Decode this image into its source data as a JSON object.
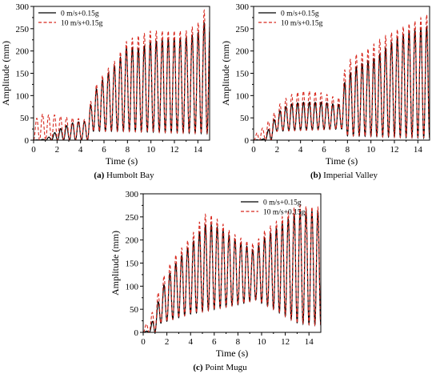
{
  "chart_data": [
    {
      "id": "a",
      "type": "line",
      "caption_letter": "(a)",
      "caption_text": "Humbolt Bay",
      "xlabel": "Time (s)",
      "ylabel": "Amplitude (mm)",
      "xlim": [
        0,
        15
      ],
      "ylim": [
        0,
        300
      ],
      "xticks": [
        0,
        2,
        4,
        6,
        8,
        10,
        12,
        14
      ],
      "yticks": [
        0,
        50,
        100,
        150,
        200,
        250,
        300
      ],
      "legend_position": "top-left",
      "period_s": 0.51,
      "series": [
        {
          "name": "0 m/s+0.15g",
          "color": "#000000",
          "dash": "solid",
          "envelope": [
            [
              0,
              0
            ],
            [
              1,
              2
            ],
            [
              1.6,
              12
            ],
            [
              2,
              22
            ],
            [
              2.6,
              30
            ],
            [
              3.2,
              38
            ],
            [
              4,
              42
            ],
            [
              4.6,
              42
            ],
            [
              5,
              100
            ],
            [
              5.6,
              125
            ],
            [
              6,
              140
            ],
            [
              7,
              170
            ],
            [
              8,
              210
            ],
            [
              9,
              205
            ],
            [
              10,
              220
            ],
            [
              11,
              225
            ],
            [
              12,
              228
            ],
            [
              13,
              230
            ],
            [
              14,
              240
            ],
            [
              14.7,
              270
            ],
            [
              15,
              265
            ]
          ],
          "troughs": [
            [
              0,
              0
            ],
            [
              4.8,
              0
            ],
            [
              5,
              20
            ],
            [
              8,
              20
            ],
            [
              15,
              15
            ]
          ]
        },
        {
          "name": "10 m/s+0.15g",
          "color": "#d8281e",
          "dash": "dashed",
          "envelope": [
            [
              0,
              35
            ],
            [
              0.5,
              62
            ],
            [
              1,
              55
            ],
            [
              1.6,
              58
            ],
            [
              2,
              55
            ],
            [
              2.6,
              52
            ],
            [
              3.2,
              50
            ],
            [
              4,
              48
            ],
            [
              4.6,
              45
            ],
            [
              5,
              110
            ],
            [
              5.6,
              135
            ],
            [
              6,
              150
            ],
            [
              7,
              180
            ],
            [
              8,
              225
            ],
            [
              9,
              235
            ],
            [
              10,
              245
            ],
            [
              11,
              245
            ],
            [
              12,
              245
            ],
            [
              13,
              245
            ],
            [
              14,
              262
            ],
            [
              14.7,
              300
            ],
            [
              15,
              280
            ]
          ],
          "troughs": [
            [
              0,
              0
            ],
            [
              1.5,
              0
            ],
            [
              4.8,
              0
            ],
            [
              5,
              20
            ],
            [
              8,
              20
            ],
            [
              15,
              15
            ]
          ]
        }
      ]
    },
    {
      "id": "b",
      "type": "line",
      "caption_letter": "(b)",
      "caption_text": "Imperial Valley",
      "xlabel": "Time (s)",
      "ylabel": "Amplitude (mm)",
      "xlim": [
        0,
        15
      ],
      "ylim": [
        0,
        300
      ],
      "xticks": [
        0,
        2,
        4,
        6,
        8,
        10,
        12,
        14
      ],
      "yticks": [
        0,
        50,
        100,
        150,
        200,
        250,
        300
      ],
      "legend_position": "top-left",
      "period_s": 0.5,
      "series": [
        {
          "name": "0 m/s+0.15g",
          "color": "#000000",
          "dash": "solid",
          "envelope": [
            [
              0,
              0
            ],
            [
              0.8,
              2
            ],
            [
              1.5,
              35
            ],
            [
              2.2,
              65
            ],
            [
              3,
              80
            ],
            [
              4,
              85
            ],
            [
              5,
              85
            ],
            [
              6,
              85
            ],
            [
              7,
              80
            ],
            [
              7.4,
              80
            ],
            [
              7.8,
              135
            ],
            [
              8.5,
              160
            ],
            [
              9.5,
              175
            ],
            [
              10.5,
              185
            ],
            [
              11,
              200
            ],
            [
              12,
              225
            ],
            [
              13,
              240
            ],
            [
              14,
              248
            ],
            [
              15,
              255
            ]
          ],
          "troughs": [
            [
              0,
              0
            ],
            [
              1.5,
              0
            ],
            [
              2,
              20
            ],
            [
              7.5,
              25
            ],
            [
              8,
              10
            ],
            [
              15,
              5
            ]
          ]
        },
        {
          "name": "10 m/s+0.15g",
          "color": "#d8281e",
          "dash": "dashed",
          "envelope": [
            [
              0,
              0
            ],
            [
              0.3,
              18
            ],
            [
              0.8,
              28
            ],
            [
              1.5,
              50
            ],
            [
              2.2,
              80
            ],
            [
              3,
              100
            ],
            [
              4,
              110
            ],
            [
              5,
              110
            ],
            [
              6,
              105
            ],
            [
              7,
              95
            ],
            [
              7.4,
              95
            ],
            [
              7.8,
              165
            ],
            [
              8.5,
              190
            ],
            [
              9.5,
              200
            ],
            [
              10.5,
              220
            ],
            [
              11,
              230
            ],
            [
              12,
              245
            ],
            [
              13,
              258
            ],
            [
              14,
              270
            ],
            [
              15,
              285
            ]
          ],
          "troughs": [
            [
              0,
              0
            ],
            [
              1.5,
              0
            ],
            [
              2,
              20
            ],
            [
              7.5,
              25
            ],
            [
              8,
              10
            ],
            [
              15,
              5
            ]
          ]
        }
      ]
    },
    {
      "id": "c",
      "type": "line",
      "caption_letter": "(c)",
      "caption_text": "Point Mugu",
      "xlabel": "Time (s)",
      "ylabel": "Amplitude (mm)",
      "xlim": [
        0,
        15
      ],
      "ylim": [
        0,
        300
      ],
      "xticks": [
        0,
        2,
        4,
        6,
        8,
        10,
        12,
        14
      ],
      "yticks": [
        0,
        50,
        100,
        150,
        200,
        250,
        300
      ],
      "legend_position": "top-right",
      "period_s": 0.5,
      "series": [
        {
          "name": "0 m/s+0.15g",
          "color": "#000000",
          "dash": "solid",
          "envelope": [
            [
              0,
              0
            ],
            [
              0.5,
              5
            ],
            [
              1,
              40
            ],
            [
              1.5,
              90
            ],
            [
              2.5,
              140
            ],
            [
              3.5,
              175
            ],
            [
              4.5,
              205
            ],
            [
              5,
              228
            ],
            [
              5.5,
              235
            ],
            [
              6.5,
              225
            ],
            [
              7.5,
              205
            ],
            [
              8.5,
              190
            ],
            [
              9.5,
              175
            ],
            [
              10,
              200
            ],
            [
              11,
              220
            ],
            [
              12,
              240
            ],
            [
              13,
              262
            ],
            [
              14,
              262
            ],
            [
              15,
              262
            ]
          ],
          "troughs": [
            [
              0,
              0
            ],
            [
              1,
              0
            ],
            [
              1.5,
              20
            ],
            [
              4,
              40
            ],
            [
              6,
              50
            ],
            [
              8,
              60
            ],
            [
              9.5,
              70
            ],
            [
              11,
              50
            ],
            [
              13,
              20
            ],
            [
              15,
              15
            ]
          ]
        },
        {
          "name": "10 m/s+0.15g",
          "color": "#d8281e",
          "dash": "dashed",
          "envelope": [
            [
              0,
              10
            ],
            [
              0.5,
              25
            ],
            [
              1,
              60
            ],
            [
              1.5,
              110
            ],
            [
              2.5,
              160
            ],
            [
              3.5,
              190
            ],
            [
              4.5,
              225
            ],
            [
              5,
              252
            ],
            [
              5.5,
              258
            ],
            [
              6.5,
              240
            ],
            [
              7.5,
              215
            ],
            [
              8.5,
              200
            ],
            [
              9.5,
              190
            ],
            [
              10,
              215
            ],
            [
              11,
              235
            ],
            [
              12,
              255
            ],
            [
              13,
              275
            ],
            [
              14,
              272
            ],
            [
              15,
              270
            ]
          ],
          "troughs": [
            [
              0,
              0
            ],
            [
              1,
              0
            ],
            [
              1.5,
              20
            ],
            [
              4,
              40
            ],
            [
              6,
              50
            ],
            [
              8,
              60
            ],
            [
              9.5,
              70
            ],
            [
              11,
              50
            ],
            [
              13,
              20
            ],
            [
              15,
              15
            ]
          ]
        }
      ]
    }
  ]
}
